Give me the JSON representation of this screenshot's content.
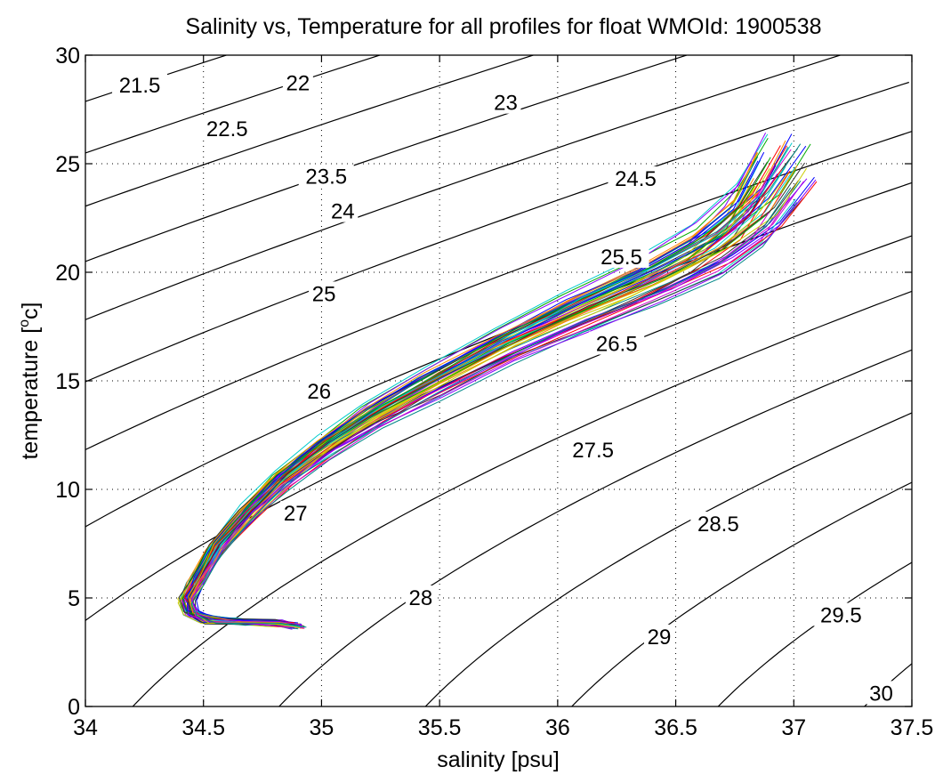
{
  "chart_data": {
    "type": "line",
    "title": "Salinity vs, Temperature for all profiles for float WMOId: 1900538",
    "xlabel": "salinity [psu]",
    "ylabel_main": "temperature [",
    "ylabel_sup": "o",
    "ylabel_end": "c]",
    "xlim": [
      34,
      37.5
    ],
    "ylim": [
      0,
      30
    ],
    "xticks": [
      34,
      34.5,
      35,
      35.5,
      36,
      36.5,
      37,
      37.5
    ],
    "xtick_labels": [
      "34",
      "34.5",
      "35",
      "35.5",
      "36",
      "36.5",
      "37",
      "37.5"
    ],
    "yticks": [
      0,
      5,
      10,
      15,
      20,
      25,
      30
    ],
    "ytick_labels": [
      "0",
      "5",
      "10",
      "15",
      "20",
      "25",
      "30"
    ],
    "grid": true,
    "density_contours": {
      "levels": [
        21.5,
        22,
        22.5,
        23,
        23.5,
        24,
        24.5,
        25,
        25.5,
        26,
        26.5,
        27,
        27.5,
        28,
        28.5,
        29,
        29.5,
        30
      ],
      "line_color": "#000000",
      "labels": [
        {
          "text": "21.5",
          "s": 34.23,
          "t": 28.6
        },
        {
          "text": "22",
          "s": 34.9,
          "t": 28.7
        },
        {
          "text": "22.5",
          "s": 34.6,
          "t": 26.6
        },
        {
          "text": "23",
          "s": 35.78,
          "t": 27.8
        },
        {
          "text": "23.5",
          "s": 35.02,
          "t": 24.4
        },
        {
          "text": "24",
          "s": 35.09,
          "t": 22.8
        },
        {
          "text": "24.5",
          "s": 36.33,
          "t": 24.3
        },
        {
          "text": "25",
          "s": 35.01,
          "t": 19.0
        },
        {
          "text": "25.5",
          "s": 36.27,
          "t": 20.7
        },
        {
          "text": "26",
          "s": 34.99,
          "t": 14.5
        },
        {
          "text": "26.5",
          "s": 36.25,
          "t": 16.7
        },
        {
          "text": "27",
          "s": 34.89,
          "t": 8.9
        },
        {
          "text": "27.5",
          "s": 36.15,
          "t": 11.8
        },
        {
          "text": "28",
          "s": 35.42,
          "t": 5.0
        },
        {
          "text": "28.5",
          "s": 36.68,
          "t": 8.4
        },
        {
          "text": "29",
          "s": 36.43,
          "t": 3.2
        },
        {
          "text": "29.5",
          "s": 37.2,
          "t": 4.2
        },
        {
          "text": "30",
          "s": 37.37,
          "t": 0.6
        }
      ]
    },
    "profile_colors": [
      "#0000ff",
      "#ff0000",
      "#00aa00",
      "#00cccc",
      "#cc00cc",
      "#cccc00",
      "#333333",
      "#ff8800",
      "#8800ff",
      "#008888"
    ],
    "profile_count": 60,
    "mean_profile": {
      "salinity": [
        34.9,
        34.8,
        34.65,
        34.52,
        34.45,
        34.43,
        34.47,
        34.55,
        34.68,
        34.82,
        35.0,
        35.2,
        35.45,
        35.75,
        36.05,
        36.35,
        36.6,
        36.78,
        36.9
      ],
      "temperature": [
        3.7,
        3.85,
        3.9,
        4.0,
        4.3,
        4.9,
        5.8,
        7.3,
        8.9,
        10.4,
        11.9,
        13.3,
        14.8,
        16.5,
        18.0,
        19.4,
        20.8,
        22.4,
        24.5
      ]
    }
  }
}
